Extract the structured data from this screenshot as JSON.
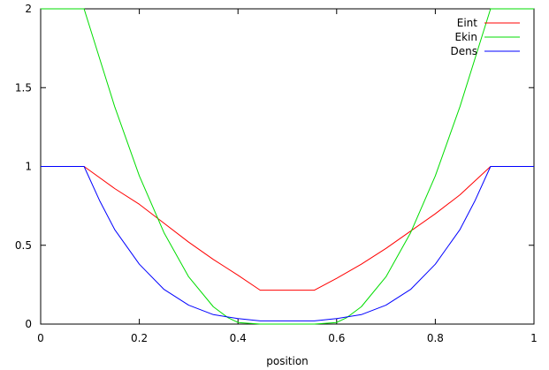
{
  "chart_data": {
    "type": "line",
    "title": "",
    "xlabel": "position",
    "ylabel": "",
    "xlim": [
      0,
      1
    ],
    "ylim": [
      0,
      2
    ],
    "grid": false,
    "legend_position": "top-right",
    "x_ticks": [
      0,
      0.2,
      0.4,
      0.6,
      0.8,
      1
    ],
    "x_tick_labels": [
      "0",
      "0.2",
      "0.4",
      "0.6",
      "0.8",
      "1"
    ],
    "y_ticks": [
      0,
      0.5,
      1,
      1.5,
      2
    ],
    "y_tick_labels": [
      "0",
      "0.5",
      "1",
      "1.5",
      "2"
    ],
    "series": [
      {
        "name": "Eint",
        "color": "#ff0000",
        "x": [
          0,
          0.088,
          0.15,
          0.2,
          0.25,
          0.3,
          0.35,
          0.4,
          0.445,
          0.555,
          0.6,
          0.65,
          0.7,
          0.75,
          0.8,
          0.85,
          0.912,
          1
        ],
        "y": [
          1,
          1,
          0.86,
          0.76,
          0.64,
          0.52,
          0.41,
          0.31,
          0.215,
          0.215,
          0.29,
          0.38,
          0.48,
          0.59,
          0.7,
          0.82,
          1,
          1
        ]
      },
      {
        "name": "Ekin",
        "color": "#00dd00",
        "x": [
          0,
          0.088,
          0.12,
          0.15,
          0.2,
          0.25,
          0.3,
          0.35,
          0.38,
          0.4,
          0.445,
          0.555,
          0.6,
          0.62,
          0.65,
          0.7,
          0.75,
          0.8,
          0.85,
          0.88,
          0.912,
          1
        ],
        "y": [
          2,
          2,
          1.68,
          1.38,
          0.94,
          0.58,
          0.3,
          0.11,
          0.04,
          0.01,
          0,
          0,
          0.01,
          0.04,
          0.11,
          0.3,
          0.58,
          0.94,
          1.38,
          1.68,
          2,
          2
        ]
      },
      {
        "name": "Dens",
        "color": "#0000ff",
        "x": [
          0,
          0.088,
          0.12,
          0.15,
          0.2,
          0.25,
          0.3,
          0.35,
          0.4,
          0.445,
          0.555,
          0.6,
          0.65,
          0.7,
          0.75,
          0.8,
          0.85,
          0.88,
          0.912,
          1
        ],
        "y": [
          1,
          1,
          0.78,
          0.6,
          0.38,
          0.22,
          0.12,
          0.06,
          0.035,
          0.02,
          0.02,
          0.035,
          0.06,
          0.12,
          0.22,
          0.38,
          0.6,
          0.78,
          1,
          1
        ]
      }
    ]
  }
}
